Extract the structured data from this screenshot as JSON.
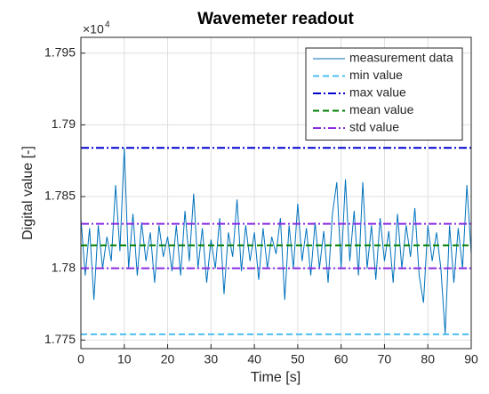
{
  "chart_data": {
    "type": "line",
    "title": "Wavemeter readout",
    "x_label": "Time [s]",
    "y_label": "Digital value [-]",
    "y_multiplier_label": "×10",
    "y_multiplier_exponent": "4",
    "x": [
      0,
      1,
      2,
      3,
      4,
      5,
      6,
      7,
      8,
      9,
      10,
      11,
      12,
      13,
      14,
      15,
      16,
      17,
      18,
      19,
      20,
      21,
      22,
      23,
      24,
      25,
      26,
      27,
      28,
      29,
      30,
      31,
      32,
      33,
      34,
      35,
      36,
      37,
      38,
      39,
      40,
      41,
      42,
      43,
      44,
      45,
      46,
      47,
      48,
      49,
      50,
      51,
      52,
      53,
      54,
      55,
      56,
      57,
      58,
      59,
      60,
      61,
      62,
      63,
      64,
      65,
      66,
      67,
      68,
      69,
      70,
      71,
      72,
      73,
      74,
      75,
      76,
      77,
      78,
      79,
      80,
      81,
      82,
      83,
      84,
      85,
      86,
      87,
      88,
      89,
      90
    ],
    "series": [
      {
        "name": "measurement data",
        "color": "#0072bd",
        "values": [
          1.7835,
          1.7795,
          1.7828,
          1.7778,
          1.783,
          1.78,
          1.7822,
          1.7805,
          1.7858,
          1.7812,
          1.7884,
          1.78,
          1.7838,
          1.7795,
          1.7832,
          1.7805,
          1.7825,
          1.779,
          1.783,
          1.7808,
          1.7822,
          1.7798,
          1.783,
          1.7795,
          1.784,
          1.7805,
          1.7852,
          1.78,
          1.7828,
          1.779,
          1.782,
          1.78,
          1.7835,
          1.7782,
          1.7825,
          1.7808,
          1.7848,
          1.7798,
          1.783,
          1.7805,
          1.7825,
          1.7792,
          1.7828,
          1.78,
          1.7822,
          1.781,
          1.7835,
          1.7778,
          1.783,
          1.78,
          1.7845,
          1.7805,
          1.7828,
          1.7795,
          1.7832,
          1.78,
          1.7826,
          1.779,
          1.7838,
          1.786,
          1.78,
          1.7862,
          1.7805,
          1.784,
          1.7795,
          1.786,
          1.78,
          1.783,
          1.7792,
          1.7835,
          1.7805,
          1.7826,
          1.779,
          1.7838,
          1.78,
          1.783,
          1.7808,
          1.7842,
          1.7795,
          1.7776,
          1.783,
          1.7805,
          1.7825,
          1.78,
          1.7754,
          1.783,
          1.779,
          1.7828,
          1.78,
          1.7858,
          1.781
        ]
      }
    ],
    "reference_lines": [
      {
        "name": "min value",
        "color": "#4dbeee",
        "style": "dashed",
        "values": [
          1.7754
        ]
      },
      {
        "name": "max value",
        "color": "#0000cd",
        "style": "dashdot",
        "values": [
          1.7884
        ]
      },
      {
        "name": "mean value",
        "color": "#008000",
        "style": "dashed",
        "values": [
          1.7816
        ]
      },
      {
        "name": "std value",
        "color": "#8a2be2",
        "style": "dashdot",
        "values": [
          1.7831,
          1.78
        ]
      }
    ],
    "xlim": [
      0,
      90
    ],
    "xticks": [
      0,
      10,
      20,
      30,
      40,
      50,
      60,
      70,
      80,
      90
    ],
    "ylim": [
      1.7744,
      1.7961
    ],
    "yticks": [
      1.775,
      1.78,
      1.785,
      1.79,
      1.795
    ],
    "grid": true,
    "legend": "top-right"
  }
}
